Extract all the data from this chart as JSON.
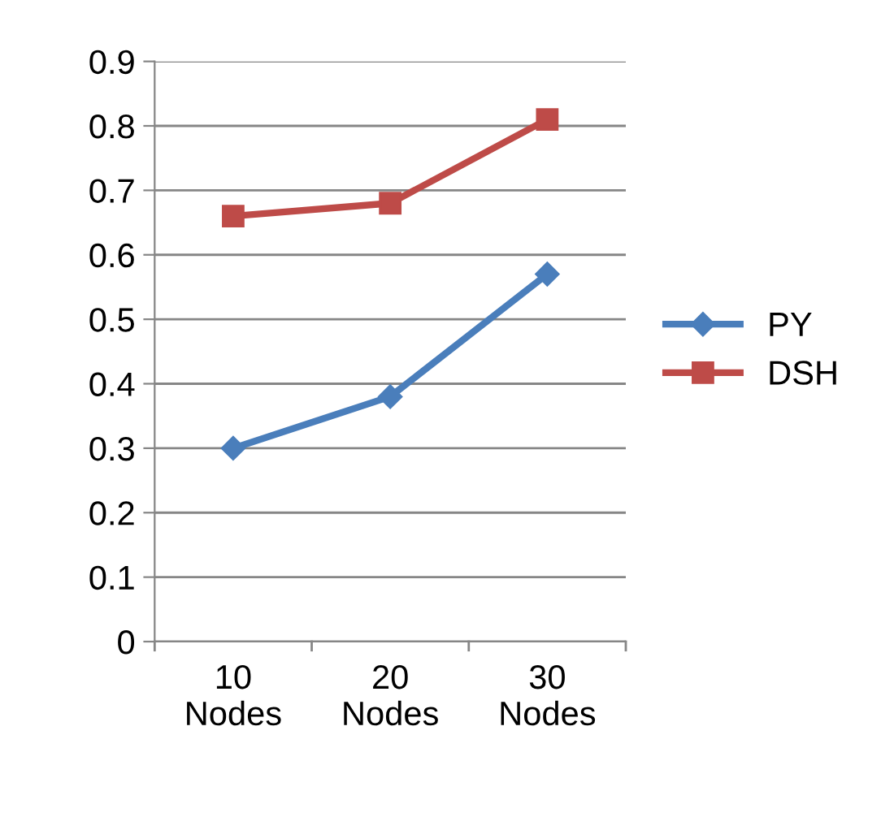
{
  "chart_data": {
    "type": "line",
    "categories": [
      "10\nNodes",
      "20\nNodes",
      "30\nNodes"
    ],
    "series": [
      {
        "name": "PY",
        "color": "#4a7ebb",
        "marker": "diamond",
        "values": [
          0.3,
          0.38,
          0.57
        ]
      },
      {
        "name": "DSH",
        "color": "#be4b48",
        "marker": "square",
        "values": [
          0.66,
          0.68,
          0.81
        ]
      }
    ],
    "ylim": [
      0,
      0.9
    ],
    "yticks": [
      0,
      0.1,
      0.2,
      0.3,
      0.4,
      0.5,
      0.6,
      0.7,
      0.8,
      0.9
    ],
    "grid": "y",
    "legend": "right",
    "line_style": "solid"
  }
}
